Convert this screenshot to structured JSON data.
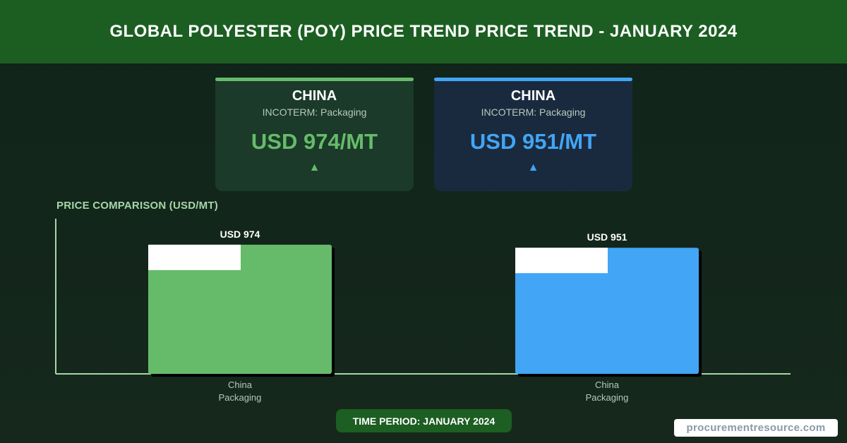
{
  "header": {
    "title": "GLOBAL POLYESTER (POY) PRICE TREND PRICE TREND - JANUARY 2024"
  },
  "cards": [
    {
      "country": "CHINA",
      "incoterm": "INCOTERM: Packaging",
      "price": "USD 974/MT",
      "arrow": "▲",
      "color": "#66bb6a"
    },
    {
      "country": "CHINA",
      "incoterm": "INCOTERM: Packaging",
      "price": "USD 951/MT",
      "arrow": "▲",
      "color": "#42a5f5"
    }
  ],
  "chart_section": {
    "title": "PRICE COMPARISON (USD/MT)"
  },
  "chart_data": {
    "type": "bar",
    "title": "PRICE COMPARISON (USD/MT)",
    "categories": [
      [
        "China",
        "Packaging"
      ],
      [
        "China",
        "Packaging"
      ]
    ],
    "values": [
      974,
      951
    ],
    "value_labels": [
      "USD 974",
      "USD 951"
    ],
    "colors": [
      "#66bb6a",
      "#42a5f5"
    ],
    "ylim": [
      0,
      1000
    ],
    "grid": false
  },
  "footer": {
    "time_period": "TIME PERIOD: JANUARY 2024",
    "watermark": "procurementresource.com"
  }
}
